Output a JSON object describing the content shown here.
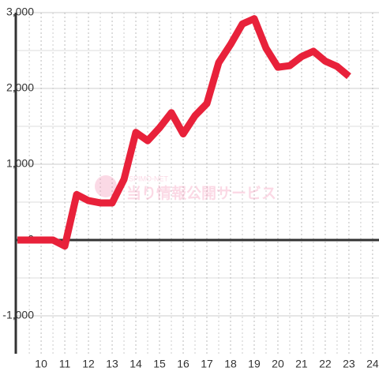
{
  "chart_data": {
    "type": "line",
    "watermark": {
      "brand": "SPIMO-NET",
      "text": "当り情報公開サービス"
    },
    "x": [
      9,
      9.5,
      10,
      10.5,
      11,
      11.5,
      12,
      12.5,
      13,
      13.5,
      14,
      14.5,
      15,
      15.5,
      16,
      16.5,
      17,
      17.5,
      18,
      18.5,
      19,
      19.5,
      20,
      20.5,
      21,
      21.5,
      22,
      22.5,
      23
    ],
    "series": [
      {
        "color": "#e8213a",
        "values": [
          0,
          0,
          0,
          0,
          -80,
          600,
          520,
          490,
          490,
          800,
          1420,
          1310,
          1480,
          1680,
          1400,
          1640,
          1800,
          2340,
          2580,
          2850,
          2920,
          2530,
          2280,
          2300,
          2420,
          2490,
          2360,
          2290,
          2160
        ]
      }
    ],
    "xlim": [
      8.93,
      24.27
    ],
    "xticks": [
      10,
      11,
      12,
      13,
      14,
      15,
      16,
      17,
      18,
      19,
      20,
      21,
      22,
      23,
      24
    ],
    "ylim": [
      -1500,
      3000
    ],
    "yticks": [
      {
        "value": -1000,
        "label": "-1,000"
      },
      0,
      {
        "value": 1000,
        "label": "1,000"
      },
      {
        "value": 2000,
        "label": "2,000"
      },
      {
        "value": 3000,
        "label": "3,000"
      }
    ],
    "grid": true
  }
}
